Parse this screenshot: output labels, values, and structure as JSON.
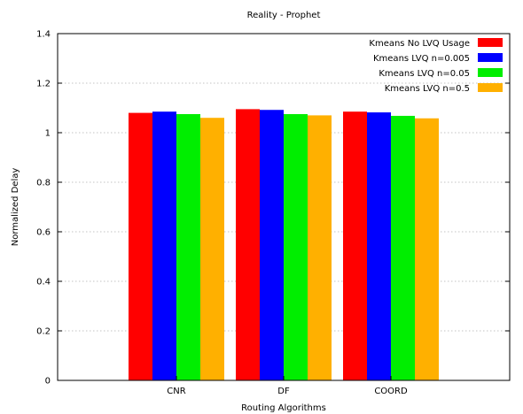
{
  "chart_data": {
    "type": "bar",
    "title": "Reality - Prophet",
    "xlabel": "Routing Algorithms",
    "ylabel": "Normalized Delay",
    "ylim": [
      0,
      1.4
    ],
    "yticks": [
      0,
      0.2,
      0.4,
      0.6,
      0.8,
      1,
      1.2,
      1.4
    ],
    "grid": "horizontal dotted",
    "legend_position": "top-right",
    "categories": [
      "CNR",
      "DF",
      "COORD"
    ],
    "series": [
      {
        "name": "Kmeans No LVQ Usage",
        "color": "#ff0000",
        "values": [
          1.08,
          1.095,
          1.085
        ]
      },
      {
        "name": "Kmeans LVQ n=0.005",
        "color": "#0000ff",
        "values": [
          1.085,
          1.092,
          1.082
        ]
      },
      {
        "name": "Kmeans LVQ n=0.05",
        "color": "#00ee00",
        "values": [
          1.075,
          1.075,
          1.068
        ]
      },
      {
        "name": "Kmeans LVQ n=0.5",
        "color": "#ffb000",
        "values": [
          1.06,
          1.07,
          1.058
        ]
      }
    ]
  }
}
